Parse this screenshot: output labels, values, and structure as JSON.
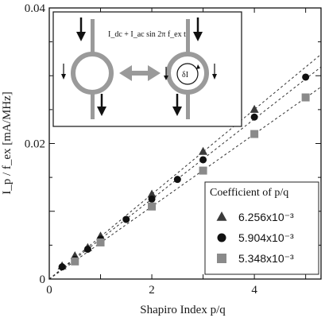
{
  "chart_data": {
    "type": "scatter",
    "xlabel": "Shapiro Index  p/q",
    "ylabel": "I_p / f_ex [mA/MHz]",
    "xlim": [
      0,
      5.3
    ],
    "ylim": [
      0,
      0.04
    ],
    "x_ticks": [
      {
        "value": 0,
        "label": "0"
      },
      {
        "value": 2,
        "label": "2"
      },
      {
        "value": 4,
        "label": "4"
      }
    ],
    "y_ticks": [
      {
        "value": 0,
        "label": "0"
      },
      {
        "value": 0.02,
        "label": "0.02"
      },
      {
        "value": 0.04,
        "label": "0.04"
      }
    ],
    "legend": {
      "title": "Coefficient of p/q",
      "placement": "bottom-right"
    },
    "series": [
      {
        "name": "6.256x10⁻³",
        "marker": "triangle",
        "color": "#3a3a3a",
        "x": [
          0.25,
          0.5,
          0.75,
          1,
          2,
          3,
          4
        ],
        "y": [
          0.0019,
          0.0034,
          0.0046,
          0.0063,
          0.0125,
          0.0188,
          0.025
        ],
        "fit_slope": 0.006256
      },
      {
        "name": "5.904x10⁻³",
        "marker": "circle",
        "color": "#111111",
        "x": [
          0.25,
          0.5,
          0.75,
          1,
          1.5,
          2,
          2.5,
          3,
          4,
          5
        ],
        "y": [
          0.0018,
          0.0029,
          0.0044,
          0.0059,
          0.0088,
          0.0118,
          0.0147,
          0.0176,
          0.0239,
          0.0298
        ],
        "fit_slope": 0.005904
      },
      {
        "name": "5.348x10⁻³",
        "marker": "square",
        "color": "#8a8a8a",
        "x": [
          0.5,
          1,
          2,
          3,
          4,
          5
        ],
        "y": [
          0.0026,
          0.0054,
          0.0107,
          0.016,
          0.0214,
          0.0268
        ],
        "fit_slope": 0.005348
      }
    ],
    "inset": {
      "formula": "I_dc + I_ac sin 2π f_ex t",
      "loop_label": "δI"
    }
  }
}
